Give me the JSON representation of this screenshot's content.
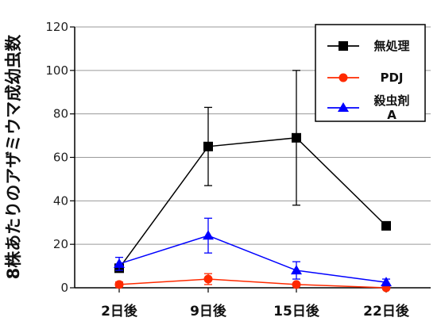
{
  "chart_data": {
    "type": "line",
    "ylabel": "8株あたりのアザミウマ成幼虫数",
    "xlabel": "",
    "categories": [
      "2日後",
      "9日後",
      "15日後",
      "22日後"
    ],
    "ylim": [
      0,
      120
    ],
    "yticks": [
      0,
      20,
      40,
      60,
      80,
      100,
      120
    ],
    "grid": "horizontal",
    "legend_position": "top-right",
    "series": [
      {
        "name": "無処理",
        "color": "#000000",
        "marker": "square",
        "values": [
          9,
          65,
          69,
          28.5
        ],
        "errors": [
          1,
          18,
          31,
          0
        ]
      },
      {
        "name": "PDJ",
        "color": "#ff2a00",
        "marker": "circle",
        "values": [
          1.5,
          4,
          1.5,
          0
        ],
        "errors": [
          1.2,
          2.5,
          0.5,
          0
        ]
      },
      {
        "name": "殺虫剤A",
        "name_lines": [
          "殺虫剤",
          "A"
        ],
        "color": "#0000ff",
        "marker": "triangle",
        "values": [
          11,
          24,
          8,
          2.5
        ],
        "errors": [
          3,
          8,
          4,
          1.5
        ]
      }
    ]
  }
}
